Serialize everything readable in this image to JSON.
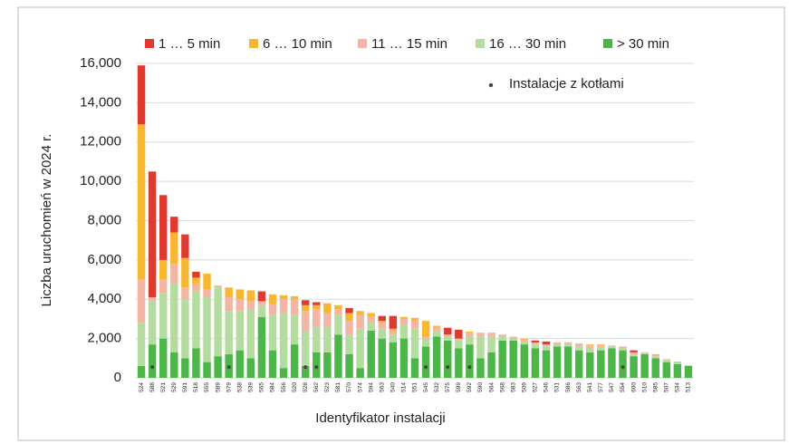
{
  "chart_data": {
    "type": "stacked_bar",
    "y_label": "Liczba uruchomień w 2024 r.",
    "x_label": "Identyfikator instalacji",
    "categories": [
      "524",
      "588",
      "521",
      "529",
      "591",
      "518",
      "555",
      "589",
      "579",
      "538",
      "539",
      "565",
      "584",
      "556",
      "520",
      "528",
      "562",
      "523",
      "581",
      "570",
      "574",
      "594",
      "563",
      "540",
      "514",
      "551",
      "545",
      "532",
      "575",
      "599",
      "592",
      "590",
      "564",
      "568",
      "583",
      "509",
      "527",
      "546",
      "531",
      "586",
      "563",
      "541",
      "577",
      "547",
      "554",
      "600",
      "510",
      "585",
      "507",
      "534",
      "513"
    ],
    "series": [
      {
        "name": "1 … 5 min",
        "color": "#e03a2e",
        "values": [
          3000,
          6400,
          3300,
          800,
          1200,
          300,
          0,
          0,
          0,
          0,
          0,
          500,
          0,
          0,
          0,
          250,
          150,
          0,
          0,
          250,
          0,
          0,
          250,
          650,
          0,
          0,
          0,
          0,
          350,
          450,
          0,
          0,
          0,
          0,
          0,
          0,
          100,
          150,
          0,
          0,
          0,
          0,
          0,
          0,
          0,
          100,
          0,
          0,
          0,
          0,
          0
        ]
      },
      {
        "name": "6 … 10 min",
        "color": "#f7b731",
        "values": [
          7900,
          0,
          1000,
          1600,
          1500,
          300,
          800,
          0,
          500,
          500,
          550,
          0,
          500,
          200,
          150,
          300,
          200,
          500,
          200,
          400,
          200,
          200,
          100,
          100,
          100,
          150,
          800,
          100,
          0,
          0,
          50,
          0,
          0,
          0,
          0,
          50,
          0,
          0,
          0,
          0,
          0,
          50,
          50,
          0,
          0,
          0,
          0,
          50,
          0,
          0,
          0
        ]
      },
      {
        "name": "11 … 15 min",
        "color": "#f4b6a4",
        "values": [
          2200,
          200,
          700,
          1000,
          600,
          400,
          400,
          100,
          700,
          600,
          400,
          200,
          550,
          700,
          800,
          1000,
          900,
          700,
          300,
          700,
          700,
          300,
          300,
          200,
          300,
          400,
          100,
          150,
          100,
          100,
          200,
          200,
          200,
          100,
          100,
          100,
          100,
          100,
          100,
          50,
          150,
          150,
          100,
          50,
          100,
          100,
          50,
          50,
          50,
          50,
          20
        ]
      },
      {
        "name": "16 … 30 min",
        "color": "#b5dca0",
        "values": [
          2200,
          2200,
          2300,
          3500,
          3000,
          2900,
          3300,
          3500,
          2200,
          2000,
          2500,
          600,
          1800,
          2800,
          1500,
          1800,
          1300,
          1300,
          1000,
          1000,
          2000,
          400,
          500,
          400,
          700,
          1500,
          400,
          300,
          200,
          400,
          400,
          1100,
          800,
          200,
          100,
          150,
          200,
          200,
          100,
          150,
          200,
          200,
          150,
          100,
          100,
          100,
          50,
          100,
          100,
          80,
          30
        ]
      },
      {
        "name": "> 30 min",
        "color": "#4cb648",
        "values": [
          600,
          1700,
          2000,
          1300,
          1000,
          1500,
          800,
          1100,
          1200,
          1400,
          1000,
          3100,
          1400,
          500,
          1700,
          600,
          1300,
          1300,
          2200,
          1200,
          500,
          2400,
          2000,
          1800,
          2000,
          1000,
          1600,
          2100,
          1900,
          1500,
          1700,
          1000,
          1300,
          1900,
          1900,
          1700,
          1500,
          1400,
          1600,
          1600,
          1400,
          1300,
          1400,
          1500,
          1400,
          1100,
          1200,
          1000,
          800,
          700,
          600
        ]
      }
    ],
    "markers": {
      "name": "Instalacje z kotłami",
      "color": "#444444",
      "values": [
        null,
        550,
        null,
        null,
        null,
        null,
        null,
        null,
        550,
        null,
        null,
        null,
        null,
        null,
        null,
        550,
        550,
        null,
        null,
        null,
        null,
        null,
        null,
        null,
        null,
        null,
        550,
        null,
        550,
        null,
        550,
        null,
        null,
        null,
        null,
        null,
        null,
        null,
        null,
        null,
        null,
        null,
        null,
        null,
        550,
        null,
        null,
        null,
        null,
        null,
        null
      ]
    },
    "ylim": [
      0,
      16000
    ],
    "yticks": [
      0,
      {
        "value": 2000,
        "label": "2,000"
      },
      {
        "value": 4000,
        "label": "4,000"
      },
      {
        "value": 6000,
        "label": "6,000"
      },
      {
        "value": 8000,
        "label": "8,000"
      },
      {
        "value": 10000,
        "label": "10,000"
      },
      {
        "value": 12000,
        "label": "12,000"
      },
      {
        "value": 14000,
        "label": "14,000"
      },
      {
        "value": 16000,
        "label": "16,000"
      }
    ],
    "grid": true
  }
}
